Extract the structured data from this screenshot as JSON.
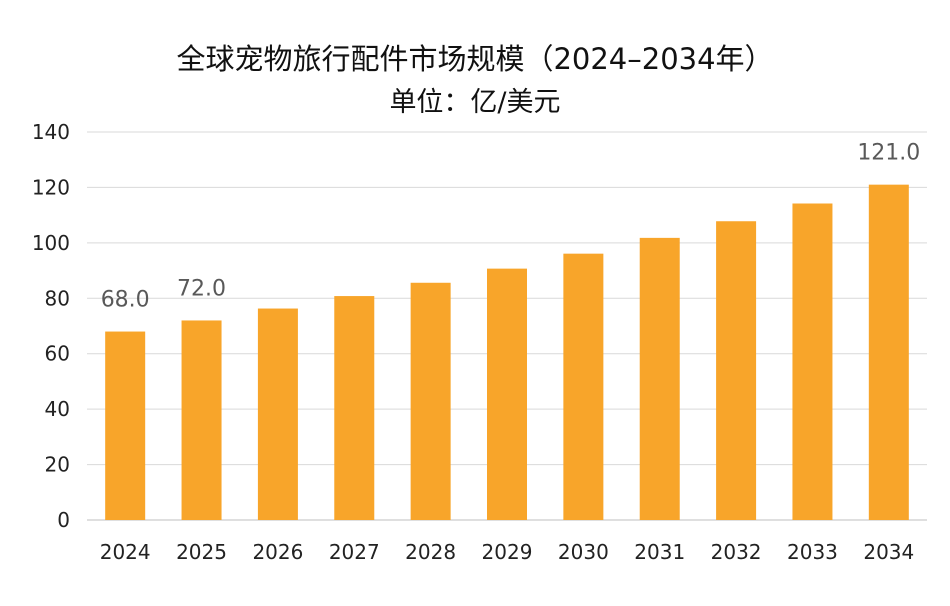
{
  "chart_data": {
    "type": "bar",
    "title": "全球宠物旅行配件市场规模（2024–2034年）",
    "subtitle": "单位：亿/美元",
    "xlabel": "",
    "ylabel": "",
    "categories": [
      "2024",
      "2025",
      "2026",
      "2027",
      "2028",
      "2029",
      "2030",
      "2031",
      "2032",
      "2033",
      "2034"
    ],
    "values": [
      68.0,
      72.0,
      76.3,
      80.8,
      85.6,
      90.7,
      96.1,
      101.8,
      107.8,
      114.2,
      121.0
    ],
    "data_labels": [
      "68.0",
      "72.0",
      null,
      null,
      null,
      null,
      null,
      null,
      null,
      null,
      "121.0"
    ],
    "ylim": [
      0,
      140
    ],
    "yticks": [
      0,
      20,
      40,
      60,
      80,
      100,
      120,
      140
    ],
    "grid": true,
    "bar_color": "#F8A52A",
    "grid_color": "#D9D9D9"
  }
}
